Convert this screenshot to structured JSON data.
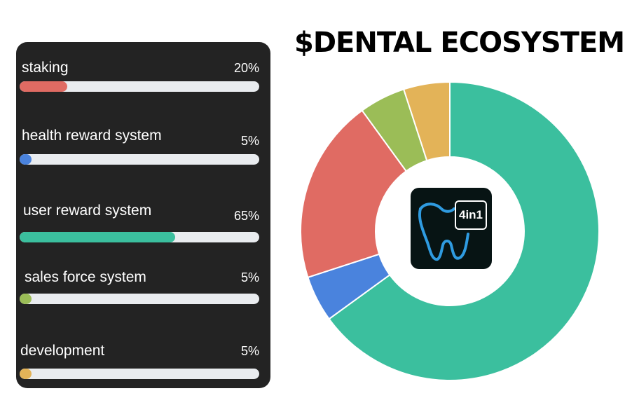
{
  "title": "$DENTAL ECOSYSTEM",
  "chart_data": {
    "type": "pie",
    "title": "$DENTAL ECOSYSTEM",
    "categories": [
      "staking",
      "health reward system",
      "user reward system",
      "sales force system",
      "development"
    ],
    "values": [
      20,
      5,
      65,
      5,
      5
    ],
    "percent_labels": [
      "20%",
      "5%",
      "65%",
      "5%",
      "5%"
    ],
    "colors": [
      "#e06b63",
      "#4a83dd",
      "#3bbf9e",
      "#9bbd57",
      "#e3b358"
    ],
    "donut": true,
    "legend_position": "left",
    "center_logo": {
      "text": "4in1",
      "icon": "tooth-icon"
    }
  }
}
